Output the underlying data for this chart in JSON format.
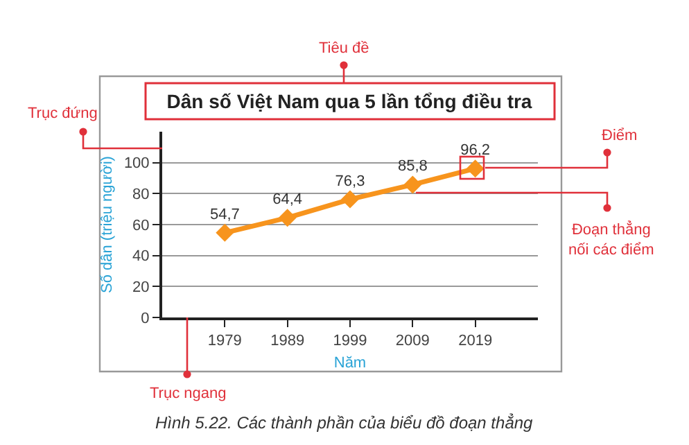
{
  "chart_data": {
    "type": "line",
    "title": "Dân số Việt Nam qua 5 lần tổng điều tra",
    "xlabel": "Năm",
    "ylabel": "Số dân (triệu người)",
    "categories": [
      "1979",
      "1989",
      "1999",
      "2009",
      "2019"
    ],
    "series": [
      {
        "color": "#f7941d",
        "values": [
          54.7,
          64.4,
          76.3,
          85.8,
          96.2
        ],
        "value_labels": [
          "54,7",
          "64,4",
          "76,3",
          "85,8",
          "96,2"
        ]
      }
    ],
    "ylim": [
      0,
      120
    ],
    "yticks": [
      0,
      20,
      40,
      60,
      80,
      100
    ],
    "grid": "y",
    "marker": "diamond",
    "line_style": "solid",
    "annotations": [
      "Tiêu đề",
      "Trục đứng",
      "Điểm",
      "Đoạn thẳng nối các điểm",
      "Trục ngang",
      "Hình 5.22. Các thành phần của biểu đồ đoạn thẳng"
    ]
  }
}
